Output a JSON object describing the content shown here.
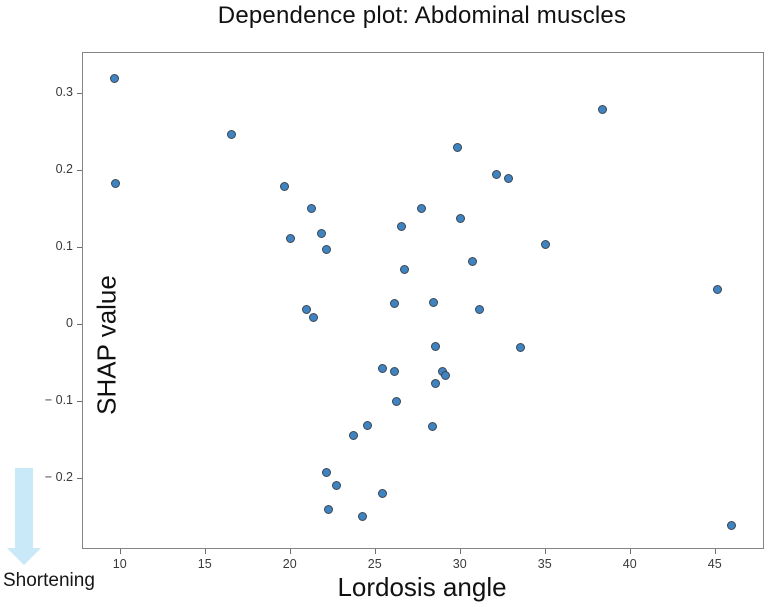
{
  "title": "Dependence plot: Abdominal muscles",
  "annotation": {
    "label": "Shortening",
    "arrow_icon": "down-arrow",
    "arrow_color": "#c9e8f8"
  },
  "chart_data": {
    "type": "scatter",
    "title": "Dependence plot: Abdominal muscles",
    "xlabel": "Lordosis angle",
    "ylabel": "SHAP value",
    "xlim": [
      7.84,
      47.84
    ],
    "ylim": [
      -0.291,
      0.352
    ],
    "grid": false,
    "legend": null,
    "marker_fill": "#3f84c1",
    "marker_edge": "#3a4654",
    "axis_color": "#848484",
    "x_ticks": [
      {
        "value": 10,
        "label": "10"
      },
      {
        "value": 15,
        "label": "15"
      },
      {
        "value": 20,
        "label": "20"
      },
      {
        "value": 25,
        "label": "25"
      },
      {
        "value": 30,
        "label": "30"
      },
      {
        "value": 35,
        "label": "35"
      },
      {
        "value": 40,
        "label": "40"
      },
      {
        "value": 45,
        "label": "45"
      }
    ],
    "y_ticks": [
      {
        "value": 0.3,
        "label": "0.3"
      },
      {
        "value": 0.2,
        "label": "0.2"
      },
      {
        "value": 0.1,
        "label": "0.1"
      },
      {
        "value": 0,
        "label": "0"
      },
      {
        "value": -0.1,
        "label": "− 0.1"
      },
      {
        "value": -0.2,
        "label": "− 0.2"
      }
    ],
    "points": [
      [
        9.7,
        0.318
      ],
      [
        9.8,
        0.182
      ],
      [
        16.6,
        0.245
      ],
      [
        19.7,
        0.178
      ],
      [
        20.1,
        0.11
      ],
      [
        21.3,
        0.15
      ],
      [
        21.9,
        0.117
      ],
      [
        22.2,
        0.096
      ],
      [
        21.0,
        0.018
      ],
      [
        21.4,
        0.008
      ],
      [
        26.6,
        0.126
      ],
      [
        26.8,
        0.07
      ],
      [
        26.2,
        0.026
      ],
      [
        27.8,
        0.149
      ],
      [
        28.5,
        0.027
      ],
      [
        29.9,
        0.229
      ],
      [
        30.1,
        0.136
      ],
      [
        30.8,
        0.08
      ],
      [
        31.2,
        0.018
      ],
      [
        32.2,
        0.194
      ],
      [
        32.9,
        0.188
      ],
      [
        35.1,
        0.102
      ],
      [
        38.4,
        0.278
      ],
      [
        45.2,
        0.044
      ],
      [
        28.6,
        -0.03
      ],
      [
        33.6,
        -0.031
      ],
      [
        25.5,
        -0.058
      ],
      [
        26.2,
        -0.062
      ],
      [
        29.0,
        -0.062
      ],
      [
        29.2,
        -0.067
      ],
      [
        28.6,
        -0.078
      ],
      [
        26.3,
        -0.101
      ],
      [
        24.6,
        -0.132
      ],
      [
        28.4,
        -0.134
      ],
      [
        23.8,
        -0.146
      ],
      [
        22.2,
        -0.194
      ],
      [
        22.8,
        -0.211
      ],
      [
        25.5,
        -0.221
      ],
      [
        22.3,
        -0.241
      ],
      [
        24.3,
        -0.251
      ],
      [
        46.0,
        -0.262
      ]
    ]
  }
}
